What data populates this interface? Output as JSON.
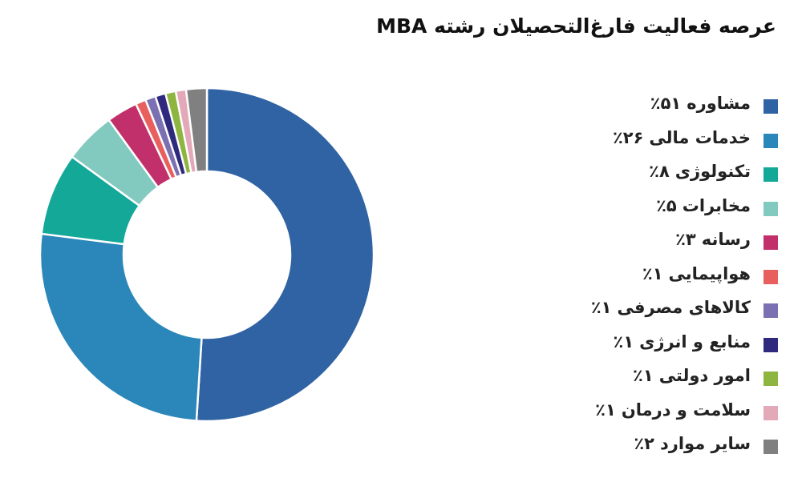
{
  "chart_data": {
    "type": "donut",
    "title": "عرصه فعالیت فارغ‌التحصیلان رشته MBA",
    "categories": [
      "مشاوره",
      "خدمات مالی",
      "تکنولوژی",
      "مخابرات",
      "رسانه",
      "هواپیمایی",
      "کالاهای مصرفی",
      "منابع و انرژی",
      "امور دولتی",
      "سلامت و درمان",
      "سایر موارد"
    ],
    "values": [
      51,
      26,
      8,
      5,
      3,
      1,
      1,
      1,
      1,
      1,
      2
    ],
    "value_labels": [
      "۵۱٪",
      "۲۶٪",
      "۸٪",
      "۵٪",
      "۳٪",
      "۱٪",
      "۱٪",
      "۱٪",
      "۱٪",
      "۱٪",
      "۲٪"
    ],
    "colors": [
      "#3063a3",
      "#2b87b9",
      "#14a899",
      "#82c9bf",
      "#c2306b",
      "#e8605e",
      "#7b70b1",
      "#2f2a7d",
      "#8db540",
      "#e4a9b8",
      "#808080"
    ],
    "legend": "right"
  }
}
